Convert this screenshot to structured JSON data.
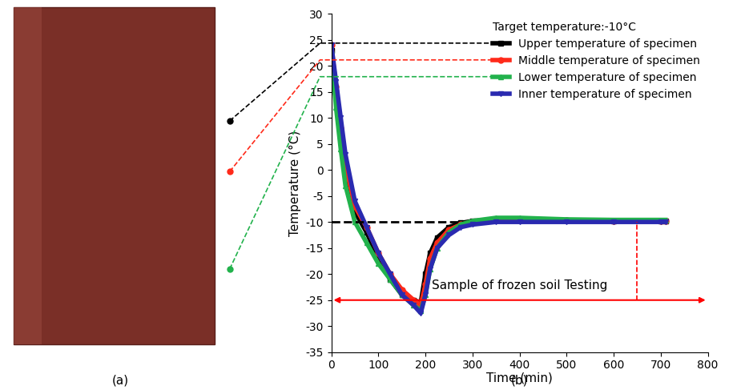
{
  "chart_data": {
    "type": "line",
    "x_label": "Time (min)",
    "y_label": "Temperature (°C)",
    "xlim": [
      0,
      800
    ],
    "xticks": [
      0,
      100,
      200,
      300,
      400,
      500,
      600,
      700,
      800
    ],
    "ylim": [
      -35,
      30
    ],
    "yticks": [
      -35,
      -30,
      -25,
      -20,
      -15,
      -10,
      -5,
      0,
      5,
      10,
      15,
      20,
      25,
      30
    ],
    "legend": "upper right",
    "target_label": "Target temperature:-10°C",
    "target_line": {
      "y": -10,
      "x": [
        0,
        270
      ]
    },
    "test_arrow": {
      "y": -25,
      "x": [
        0,
        800
      ],
      "label": "Sample of frozen soil Testing"
    },
    "test_marker": {
      "x": 650,
      "y": [
        -25,
        -10
      ]
    },
    "panel_labels": [
      "(a)",
      "(b)"
    ],
    "x": [
      0,
      10,
      20,
      30,
      50,
      75,
      100,
      125,
      150,
      175,
      190,
      200,
      210,
      225,
      250,
      275,
      300,
      350,
      400,
      500,
      600,
      700,
      710
    ],
    "series": [
      {
        "name": "Upper temperature of specimen",
        "color": "#000000",
        "marker": "square",
        "values": [
          23,
          15,
          7,
          0,
          -8,
          -12,
          -17,
          -21,
          -24,
          -25,
          -25.5,
          -20,
          -16,
          -13,
          -11,
          -10.2,
          -9.8,
          -9.5,
          -9.5,
          -9.7,
          -9.8,
          -9.8,
          -9.8
        ]
      },
      {
        "name": "Middle temperature of specimen",
        "color": "#ff2a1a",
        "marker": "circle",
        "values": [
          24,
          16,
          8,
          1,
          -7,
          -11,
          -16,
          -20,
          -23,
          -25,
          -26,
          -22,
          -17,
          -14,
          -11.5,
          -10.5,
          -10,
          -9.5,
          -9.5,
          -9.7,
          -9.8,
          -9.8,
          -9.8
        ]
      },
      {
        "name": "Lower temperature of specimen",
        "color": "#22b24c",
        "marker": "triangle",
        "values": [
          23,
          12,
          4,
          -3,
          -10,
          -14,
          -18,
          -21,
          -24,
          -26,
          -27,
          -24,
          -19,
          -15,
          -12,
          -10.5,
          -9.8,
          -9.2,
          -9.2,
          -9.5,
          -9.6,
          -9.6,
          -9.6
        ]
      },
      {
        "name": "Inner temperature of specimen",
        "color": "#2a2ab0",
        "marker": "triangle_down",
        "values": [
          24,
          17,
          10,
          3,
          -6,
          -11,
          -16,
          -20,
          -24,
          -26,
          -27.5,
          -24,
          -19,
          -15,
          -12.5,
          -11,
          -10.5,
          -10,
          -10,
          -10,
          -10,
          -10,
          -10
        ]
      }
    ]
  }
}
